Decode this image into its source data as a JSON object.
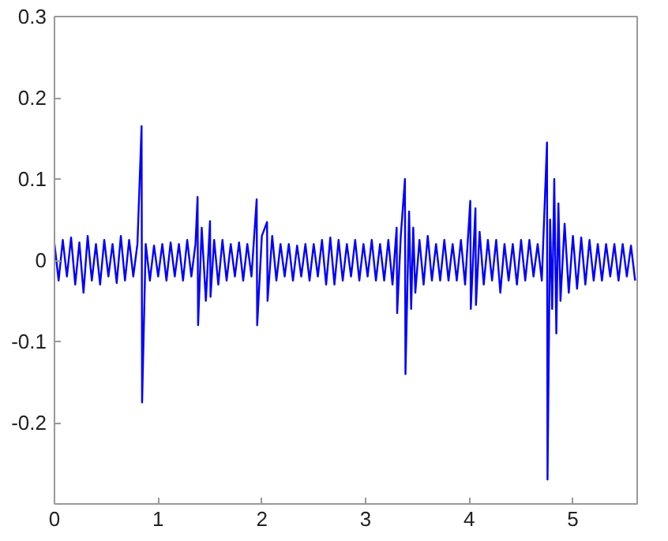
{
  "chart_data": {
    "type": "line",
    "xlim": [
      0,
      5.62
    ],
    "ylim": [
      -0.3,
      0.3
    ],
    "xticks": [
      0,
      1,
      2,
      3,
      4,
      5
    ],
    "yticks": [
      {
        "value": -0.3,
        "label": null
      },
      -0.2,
      -0.1,
      0,
      0.1,
      0.2,
      0.3
    ],
    "grid": false,
    "marker": "none",
    "line_style": "solid",
    "series": [
      {
        "color": "#0000ff",
        "x": [
          0.0,
          0.04,
          0.08,
          0.12,
          0.16,
          0.2,
          0.24,
          0.28,
          0.32,
          0.36,
          0.4,
          0.44,
          0.48,
          0.52,
          0.56,
          0.6,
          0.64,
          0.68,
          0.72,
          0.76,
          0.8,
          0.84,
          0.845,
          0.88,
          0.92,
          0.96,
          1.0,
          1.04,
          1.08,
          1.12,
          1.16,
          1.2,
          1.24,
          1.28,
          1.32,
          1.36,
          1.38,
          1.385,
          1.42,
          1.46,
          1.5,
          1.505,
          1.54,
          1.58,
          1.62,
          1.66,
          1.7,
          1.74,
          1.78,
          1.82,
          1.86,
          1.9,
          1.95,
          1.955,
          2.0,
          2.05,
          2.055,
          2.1,
          2.14,
          2.18,
          2.22,
          2.26,
          2.3,
          2.34,
          2.38,
          2.42,
          2.46,
          2.5,
          2.54,
          2.58,
          2.62,
          2.66,
          2.7,
          2.74,
          2.78,
          2.82,
          2.86,
          2.9,
          2.94,
          2.98,
          3.02,
          3.06,
          3.1,
          3.14,
          3.18,
          3.22,
          3.26,
          3.3,
          3.305,
          3.34,
          3.38,
          3.385,
          3.42,
          3.44,
          3.46,
          3.48,
          3.52,
          3.56,
          3.6,
          3.64,
          3.68,
          3.72,
          3.76,
          3.8,
          3.84,
          3.88,
          3.92,
          3.96,
          4.01,
          4.015,
          4.06,
          4.065,
          4.1,
          4.14,
          4.18,
          4.22,
          4.26,
          4.3,
          4.34,
          4.38,
          4.42,
          4.46,
          4.5,
          4.54,
          4.58,
          4.62,
          4.66,
          4.7,
          4.75,
          4.755,
          4.78,
          4.8,
          4.82,
          4.84,
          4.86,
          4.88,
          4.92,
          4.96,
          5.0,
          5.04,
          5.08,
          5.12,
          5.16,
          5.2,
          5.24,
          5.28,
          5.32,
          5.36,
          5.4,
          5.44,
          5.48,
          5.52,
          5.56,
          5.6
        ],
        "values": [
          0.02,
          -0.025,
          0.025,
          -0.02,
          0.028,
          -0.03,
          0.022,
          -0.04,
          0.03,
          -0.025,
          0.02,
          -0.03,
          0.025,
          -0.02,
          0.02,
          -0.028,
          0.03,
          -0.025,
          0.025,
          -0.02,
          0.02,
          0.165,
          -0.175,
          0.02,
          -0.025,
          0.018,
          -0.02,
          0.02,
          -0.025,
          0.022,
          -0.02,
          0.02,
          -0.025,
          0.025,
          -0.02,
          0.02,
          0.078,
          -0.08,
          0.04,
          -0.05,
          0.048,
          -0.045,
          0.025,
          -0.03,
          0.025,
          -0.025,
          0.02,
          -0.02,
          0.022,
          -0.025,
          0.02,
          -0.02,
          0.075,
          -0.08,
          0.03,
          0.047,
          -0.05,
          0.03,
          -0.025,
          0.02,
          -0.02,
          0.02,
          -0.025,
          0.018,
          -0.02,
          0.02,
          -0.025,
          0.02,
          -0.02,
          0.025,
          -0.03,
          0.028,
          -0.03,
          0.025,
          -0.025,
          0.02,
          -0.02,
          0.025,
          -0.025,
          0.02,
          -0.02,
          0.025,
          -0.025,
          0.02,
          -0.025,
          0.025,
          -0.03,
          0.04,
          -0.065,
          0.03,
          0.1,
          -0.14,
          0.06,
          -0.06,
          0.04,
          -0.04,
          0.025,
          -0.03,
          0.03,
          -0.025,
          0.02,
          -0.025,
          0.025,
          -0.025,
          0.02,
          -0.025,
          0.025,
          -0.03,
          0.073,
          -0.06,
          0.064,
          -0.055,
          0.035,
          -0.03,
          0.025,
          -0.025,
          0.025,
          -0.04,
          0.02,
          -0.025,
          0.02,
          -0.03,
          0.025,
          -0.025,
          0.025,
          -0.02,
          0.02,
          -0.025,
          0.145,
          -0.27,
          0.05,
          -0.06,
          0.1,
          -0.09,
          0.07,
          -0.05,
          0.045,
          -0.04,
          0.03,
          -0.035,
          0.028,
          -0.03,
          0.025,
          -0.025,
          0.02,
          -0.025,
          0.02,
          -0.02,
          0.02,
          -0.025,
          0.02,
          -0.02,
          0.018,
          -0.025
        ]
      }
    ]
  }
}
